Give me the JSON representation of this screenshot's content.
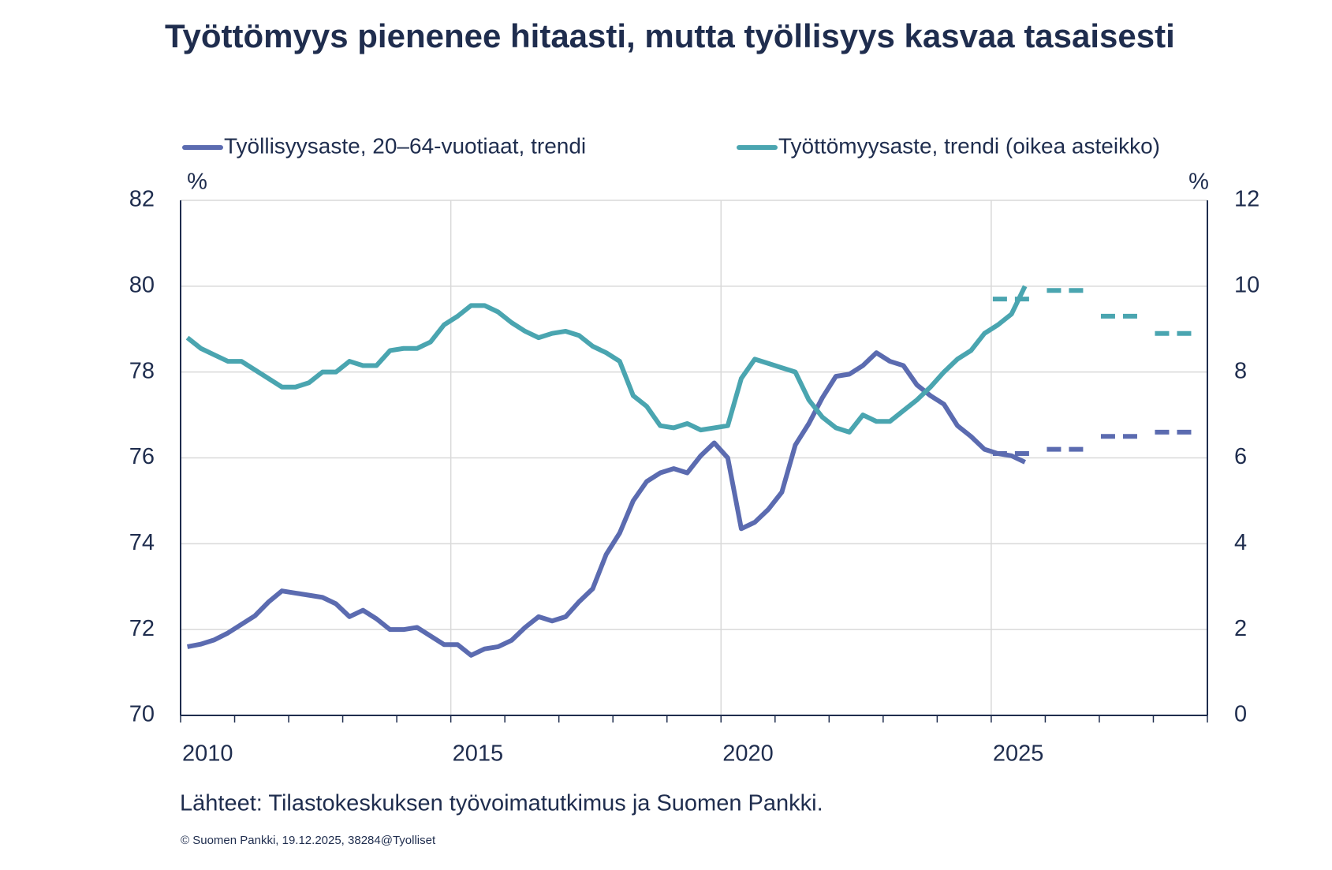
{
  "chart_data": {
    "type": "line",
    "title": "Työttömyys pienenee hitaasti, mutta työllisyys kasvaa tasaisesti",
    "y_unit": "%",
    "y2_unit": "%",
    "source": "Lähteet: Tilastokeskuksen työvoimatutkimus ja Suomen Pankki.",
    "copyright": "© Suomen Pankki, 19.12.2025, 38284@Tyolliset",
    "xlim": [
      2010,
      2029
    ],
    "xticks": [
      2010,
      2015,
      2020,
      2025
    ],
    "ylim": [
      70,
      82
    ],
    "yticks": [
      70,
      72,
      74,
      76,
      78,
      80,
      82
    ],
    "y2lim": [
      0,
      12
    ],
    "y2ticks": [
      0,
      2,
      4,
      6,
      8,
      10,
      12
    ],
    "grid": true,
    "x": [
      2010.125,
      2010.375,
      2010.625,
      2010.875,
      2011.125,
      2011.375,
      2011.625,
      2011.875,
      2012.125,
      2012.375,
      2012.625,
      2012.875,
      2013.125,
      2013.375,
      2013.625,
      2013.875,
      2014.125,
      2014.375,
      2014.625,
      2014.875,
      2015.125,
      2015.375,
      2015.625,
      2015.875,
      2016.125,
      2016.375,
      2016.625,
      2016.875,
      2017.125,
      2017.375,
      2017.625,
      2017.875,
      2018.125,
      2018.375,
      2018.625,
      2018.875,
      2019.125,
      2019.375,
      2019.625,
      2019.875,
      2020.125,
      2020.375,
      2020.625,
      2020.875,
      2021.125,
      2021.375,
      2021.625,
      2021.875,
      2022.125,
      2022.375,
      2022.625,
      2022.875,
      2023.125,
      2023.375,
      2023.625,
      2023.875,
      2024.125,
      2024.375,
      2024.625,
      2024.875,
      2025.125,
      2025.375,
      2025.625
    ],
    "series": [
      {
        "name": "Työllisyysaste, 20–64-vuotiaat, trendi",
        "color": "#5b6bb0",
        "axis": "y",
        "values": [
          71.6,
          71.66,
          71.76,
          71.92,
          72.12,
          72.32,
          72.64,
          72.9,
          72.85,
          72.8,
          72.75,
          72.6,
          72.3,
          72.45,
          72.25,
          72.0,
          72.0,
          72.05,
          71.85,
          71.65,
          71.65,
          71.4,
          71.55,
          71.6,
          71.75,
          72.05,
          72.3,
          72.2,
          72.3,
          72.65,
          72.95,
          73.75,
          74.25,
          75.0,
          75.45,
          75.65,
          75.75,
          75.65,
          76.05,
          76.35,
          76.0,
          74.35,
          74.5,
          74.8,
          75.2,
          76.3,
          76.8,
          77.4,
          77.9,
          77.95,
          78.15,
          78.45,
          78.25,
          78.15,
          77.7,
          77.45,
          77.25,
          76.75,
          76.5,
          76.2,
          76.1,
          76.05,
          75.9
        ]
      },
      {
        "name": "Työttömyysaste, trendi (oikea asteikko)",
        "color": "#4aa5b0",
        "axis": "y2",
        "values": [
          8.8,
          8.55,
          8.4,
          8.25,
          8.25,
          8.05,
          7.85,
          7.65,
          7.65,
          7.75,
          8.0,
          8.0,
          8.25,
          8.15,
          8.15,
          8.5,
          8.55,
          8.55,
          8.7,
          9.1,
          9.3,
          9.55,
          9.55,
          9.4,
          9.15,
          8.95,
          8.8,
          8.9,
          8.95,
          8.85,
          8.6,
          8.45,
          8.25,
          7.45,
          7.2,
          6.75,
          6.7,
          6.8,
          6.65,
          6.7,
          6.75,
          7.85,
          8.3,
          8.2,
          8.1,
          8.0,
          7.35,
          6.95,
          6.7,
          6.6,
          7.0,
          6.85,
          6.85,
          7.1,
          7.35,
          7.65,
          8.0,
          8.3,
          8.5,
          8.9,
          9.1,
          9.35,
          10.0
        ]
      }
    ],
    "forecasts": [
      {
        "color": "#5b6bb0",
        "axis": "y",
        "x": [
          2025,
          2026,
          2027,
          2028
        ],
        "values": [
          76.1,
          76.2,
          76.5,
          76.6
        ]
      },
      {
        "color": "#4aa5b0",
        "axis": "y2",
        "x": [
          2025,
          2026,
          2027,
          2028
        ],
        "values": [
          9.7,
          9.9,
          9.3,
          8.9
        ]
      }
    ]
  }
}
